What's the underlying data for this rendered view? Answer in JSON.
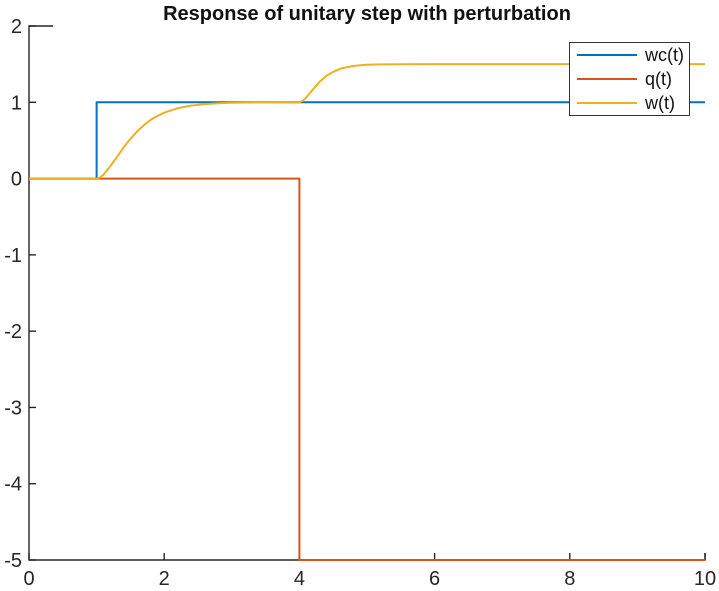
{
  "figure": {
    "background": "#ffffff",
    "axis_color": "#262626",
    "tick_label_color": "#262626"
  },
  "chart_data": {
    "type": "line",
    "title": "Response of unitary step with perturbation",
    "xlabel": "",
    "ylabel": "",
    "xlim": [
      0,
      10
    ],
    "ylim": [
      -5,
      2
    ],
    "x_ticks": [
      0,
      2,
      4,
      6,
      8,
      10
    ],
    "y_ticks": [
      2,
      1,
      0,
      -1,
      -2,
      -3,
      -4,
      -5
    ],
    "grid": false,
    "legend_position": "top-right",
    "legend_entries": [
      "wc(t)",
      "q(t)",
      "w(t)"
    ],
    "series": [
      {
        "name": "wc(t)",
        "color": "#0072BD",
        "points": [
          [
            0,
            0
          ],
          [
            1,
            0
          ],
          [
            1,
            1
          ],
          [
            10,
            1
          ]
        ]
      },
      {
        "name": "q(t)",
        "color": "#D95319",
        "points": [
          [
            0,
            0
          ],
          [
            4,
            0
          ],
          [
            4,
            -5
          ],
          [
            10,
            -5
          ]
        ]
      },
      {
        "name": "w(t)",
        "color": "#EDB120",
        "points": [
          [
            0,
            0
          ],
          [
            1,
            0
          ],
          [
            1.05,
            0.013
          ],
          [
            1.1,
            0.05
          ],
          [
            1.2,
            0.16
          ],
          [
            1.3,
            0.28
          ],
          [
            1.4,
            0.41
          ],
          [
            1.5,
            0.52
          ],
          [
            1.6,
            0.62
          ],
          [
            1.7,
            0.7
          ],
          [
            1.8,
            0.77
          ],
          [
            1.9,
            0.82
          ],
          [
            2.0,
            0.864
          ],
          [
            2.2,
            0.922
          ],
          [
            2.4,
            0.956
          ],
          [
            2.6,
            0.976
          ],
          [
            2.8,
            0.987
          ],
          [
            3.0,
            0.993
          ],
          [
            3.3,
            0.997
          ],
          [
            3.6,
            0.999
          ],
          [
            4.0,
            1.0
          ],
          [
            4.05,
            1.02
          ],
          [
            4.1,
            1.061
          ],
          [
            4.2,
            1.169
          ],
          [
            4.3,
            1.269
          ],
          [
            4.4,
            1.346
          ],
          [
            4.5,
            1.4
          ],
          [
            4.6,
            1.437
          ],
          [
            4.7,
            1.46
          ],
          [
            4.8,
            1.476
          ],
          [
            4.9,
            1.485
          ],
          [
            5.0,
            1.491
          ],
          [
            5.2,
            1.497
          ],
          [
            5.5,
            1.499
          ],
          [
            6.0,
            1.5
          ],
          [
            10,
            1.5
          ]
        ]
      }
    ]
  }
}
